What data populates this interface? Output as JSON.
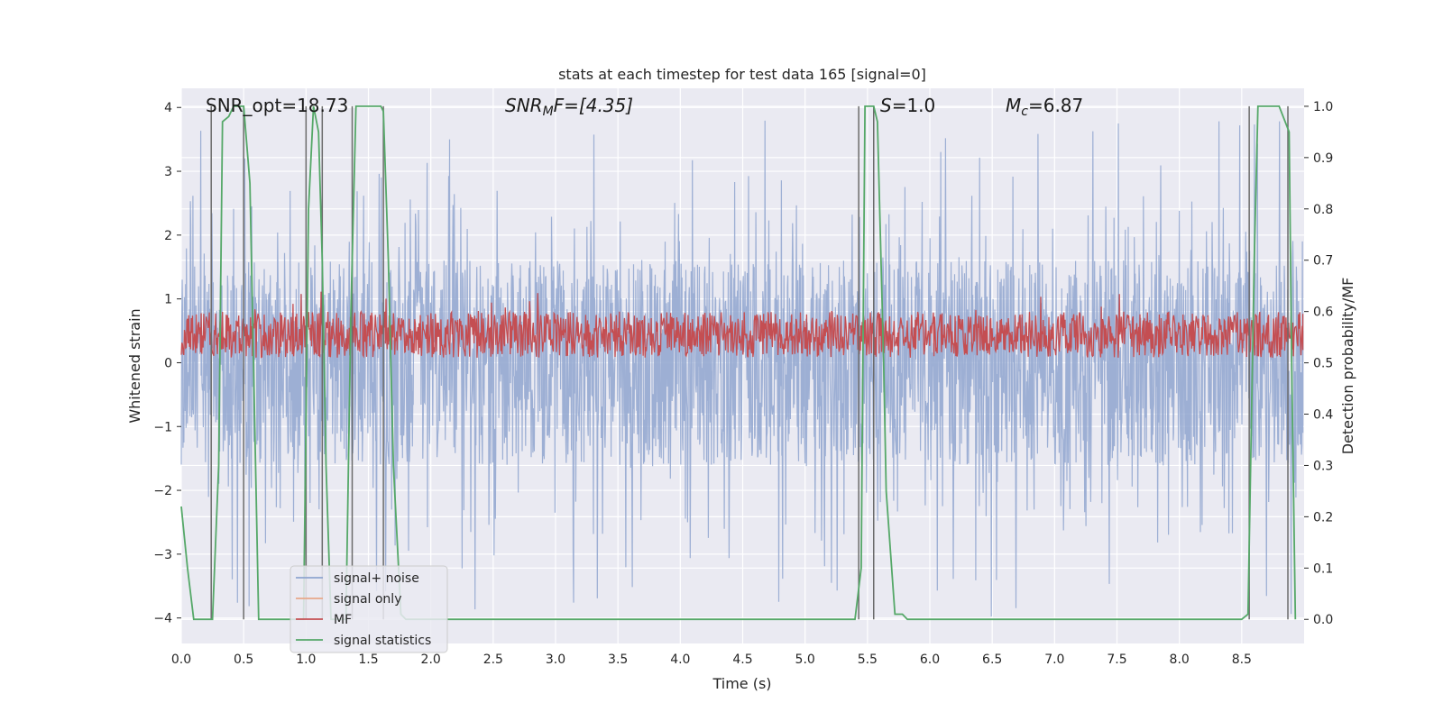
{
  "chart_data": {
    "type": "line",
    "title": "stats at each timestep for test data 165 [signal=0]",
    "xlabel": "Time (s)",
    "ylabel": "Whitened strain",
    "y2label": "Detection probability/MF",
    "xlim": [
      0.0,
      9.0
    ],
    "ylim": [
      -4.4,
      4.3
    ],
    "y2lim": [
      -0.047,
      1.035
    ],
    "xticks": [
      "0.0",
      "0.5",
      "1.0",
      "1.5",
      "2.0",
      "2.5",
      "3.0",
      "3.5",
      "4.0",
      "4.5",
      "5.0",
      "5.5",
      "6.0",
      "6.5",
      "7.0",
      "7.5",
      "8.0",
      "8.5"
    ],
    "xtick_values": [
      0,
      0.5,
      1,
      1.5,
      2,
      2.5,
      3,
      3.5,
      4,
      4.5,
      5,
      5.5,
      6,
      6.5,
      7,
      7.5,
      8,
      8.5
    ],
    "yticks": [
      "−4",
      "−3",
      "−2",
      "−1",
      "0",
      "1",
      "2",
      "3",
      "4"
    ],
    "ytick_values": [
      -4,
      -3,
      -2,
      -1,
      0,
      1,
      2,
      3,
      4
    ],
    "y2ticks": [
      "0.0",
      "0.1",
      "0.2",
      "0.3",
      "0.4",
      "0.5",
      "0.6",
      "0.7",
      "0.8",
      "0.9",
      "1.0"
    ],
    "y2tick_values": [
      0,
      0.1,
      0.2,
      0.3,
      0.4,
      0.5,
      0.6,
      0.7,
      0.8,
      0.9,
      1.0
    ],
    "annotations": {
      "snr_opt": "SNR_opt=18.73",
      "snr_mf_sym": "SNR",
      "snr_mf_sub": "M",
      "snr_mf_rest": "F=[4.35]",
      "s_sym": "S",
      "s_rest": "=1.0",
      "mc_sym": "M",
      "mc_sub": "c",
      "mc_rest": "=6.87"
    },
    "legend": {
      "position": "lower-left",
      "entries": [
        {
          "label": "signal+ noise",
          "color": "#8fa5cf"
        },
        {
          "label": "signal only",
          "color": "#e8a88a"
        },
        {
          "label": "MF",
          "color": "#c44e52"
        },
        {
          "label": "signal statistics",
          "color": "#55a868"
        }
      ]
    },
    "series": [
      {
        "name": "signal+ noise",
        "axis": "left",
        "style": "dense-noise",
        "color": "#8fa5cf",
        "envelope": [
          -1.6,
          1.6
        ],
        "spike_range": [
          -4.0,
          3.9
        ]
      },
      {
        "name": "signal only",
        "axis": "left",
        "color": "#e8a88a",
        "values": []
      },
      {
        "name": "MF",
        "axis": "right",
        "style": "dense-noise",
        "color": "#c44e52",
        "envelope": [
          0.5,
          0.63
        ]
      },
      {
        "name": "signal statistics",
        "axis": "right",
        "color": "#55a868",
        "x": [
          0.0,
          0.05,
          0.1,
          0.25,
          0.3,
          0.33,
          0.38,
          0.42,
          0.5,
          0.55,
          0.62,
          0.9,
          0.98,
          1.02,
          1.06,
          1.1,
          1.13,
          1.16,
          1.2,
          1.32,
          1.36,
          1.4,
          1.44,
          1.6,
          1.62,
          1.66,
          1.7,
          1.76,
          1.8,
          1.9,
          2.0,
          5.0,
          5.4,
          5.45,
          5.48,
          5.52,
          5.55,
          5.58,
          5.63,
          5.65,
          5.72,
          5.78,
          5.82,
          6.0,
          8.5,
          8.55,
          8.6,
          8.63,
          8.65,
          8.7,
          8.8,
          8.88,
          8.9,
          8.93
        ],
        "values": [
          0.22,
          0.1,
          0.0,
          0.0,
          0.3,
          0.97,
          0.98,
          1.0,
          1.0,
          0.85,
          0.0,
          0.0,
          0.0,
          0.8,
          1.0,
          0.95,
          0.7,
          0.3,
          0.0,
          0.0,
          0.6,
          1.0,
          1.0,
          1.0,
          0.99,
          0.7,
          0.3,
          0.01,
          0.0,
          0.0,
          0.0,
          0.0,
          0.0,
          0.1,
          1.0,
          1.0,
          1.0,
          0.97,
          0.5,
          0.25,
          0.01,
          0.01,
          0.0,
          0.0,
          0.0,
          0.01,
          0.7,
          1.0,
          1.0,
          1.0,
          1.0,
          0.95,
          0.5,
          0.0
        ]
      },
      {
        "name": "vertical markers",
        "axis": "right",
        "color": "#6b6b6b",
        "x": [
          0.24,
          0.5,
          1.0,
          1.13,
          1.37,
          1.62,
          5.43,
          5.55,
          8.56,
          8.87
        ],
        "range": [
          0.0,
          1.0
        ]
      }
    ]
  }
}
